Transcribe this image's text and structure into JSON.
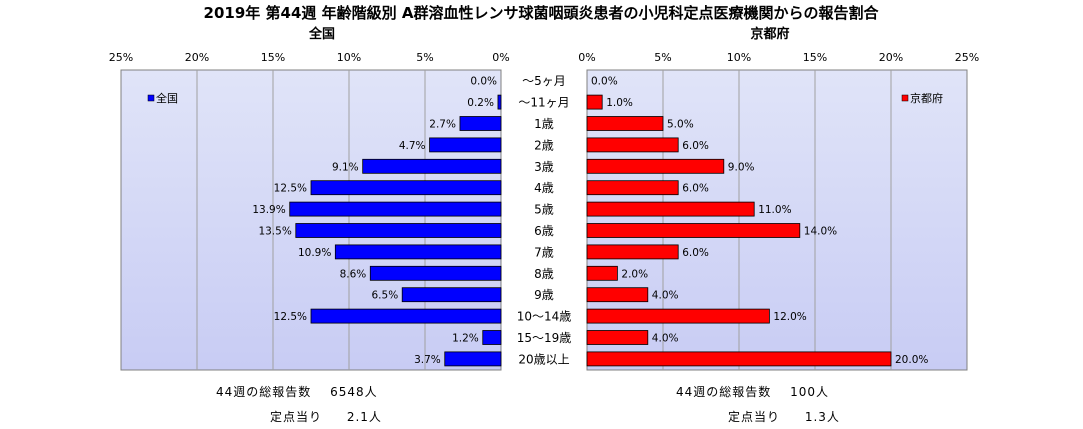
{
  "chart_data": {
    "type": "bar",
    "title": "2019年 第44週 年齢階級別 A群溶血性レンサ球菌咽頭炎患者の小児科定点医療機関からの報告割合",
    "categories": [
      "～5ヶ月",
      "～11ヶ月",
      "1歳",
      "2歳",
      "3歳",
      "4歳",
      "5歳",
      "6歳",
      "7歳",
      "8歳",
      "9歳",
      "10～14歳",
      "15～19歳",
      "20歳以上"
    ],
    "series": [
      {
        "name": "全国",
        "panel_title": "全国",
        "color": "#0000ff",
        "values": [
          0.0,
          0.2,
          2.7,
          4.7,
          9.1,
          12.5,
          13.9,
          13.5,
          10.9,
          8.6,
          6.5,
          12.5,
          1.2,
          3.7
        ],
        "labels": [
          "0.0%",
          "0.2%",
          "2.7%",
          "4.7%",
          "9.1%",
          "12.5%",
          "13.9%",
          "13.5%",
          "10.9%",
          "8.6%",
          "6.5%",
          "12.5%",
          "1.2%",
          "3.7%"
        ]
      },
      {
        "name": "京都府",
        "panel_title": "京都府",
        "color": "#ff0000",
        "values": [
          0.0,
          1.0,
          5.0,
          6.0,
          9.0,
          6.0,
          11.0,
          14.0,
          6.0,
          2.0,
          4.0,
          12.0,
          4.0,
          20.0
        ],
        "labels": [
          "0.0%",
          "1.0%",
          "5.0%",
          "6.0%",
          "9.0%",
          "6.0%",
          "11.0%",
          "14.0%",
          "6.0%",
          "2.0%",
          "4.0%",
          "12.0%",
          "4.0%",
          "20.0%"
        ]
      }
    ],
    "xlim": [
      0,
      25
    ],
    "ticks": [
      0,
      5,
      10,
      15,
      20,
      25
    ],
    "tick_labels": [
      "0%",
      "5%",
      "10%",
      "15%",
      "20%",
      "25%"
    ],
    "grid": true,
    "legend_position": "top-left (national), top-right (Kyoto)"
  },
  "footer": {
    "national_total_label": "44週の総報告数",
    "national_total_value": "6548人",
    "national_per_site_label": "定点当り",
    "national_per_site_value": "2.1人",
    "kyoto_total_label": "44週の総報告数",
    "kyoto_total_value": "100人",
    "kyoto_per_site_label": "定点当り",
    "kyoto_per_site_value": "1.3人"
  },
  "colors": {
    "plot_bg_top": "#e0e4f8",
    "plot_bg_bottom": "#c8ccf4",
    "grid": "#a0a0a0"
  }
}
